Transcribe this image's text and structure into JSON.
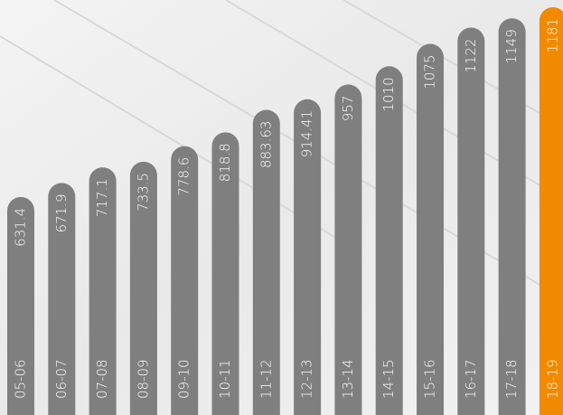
{
  "chart_data": {
    "type": "bar",
    "categories": [
      "05-06",
      "06-07",
      "07-08",
      "08-09",
      "09-10",
      "10-11",
      "11-12",
      "12-13",
      "13-14",
      "14-15",
      "15-16",
      "16-17",
      "17-18",
      "18-19"
    ],
    "values": [
      631.4,
      671.9,
      717.1,
      733.5,
      778.6,
      818.8,
      883.63,
      914.41,
      957,
      1010,
      1075,
      1122,
      1149,
      1181
    ],
    "colors": [
      "#7f7f7f",
      "#7f7f7f",
      "#7f7f7f",
      "#7f7f7f",
      "#7f7f7f",
      "#7f7f7f",
      "#7f7f7f",
      "#7f7f7f",
      "#7f7f7f",
      "#7f7f7f",
      "#7f7f7f",
      "#7f7f7f",
      "#7f7f7f",
      "#f28a00"
    ]
  }
}
